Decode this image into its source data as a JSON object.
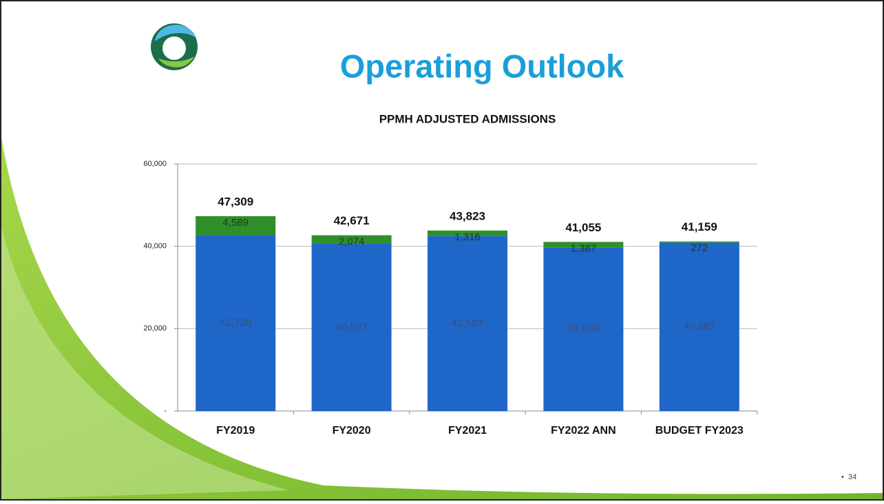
{
  "slide": {
    "title": "Operating Outlook",
    "page": "34"
  },
  "chart_data": {
    "type": "stacked-bar",
    "title": "PPMH ADJUSTED ADMISSIONS",
    "categories": [
      "FY2019",
      "FY2020",
      "FY2021",
      "FY2022 ANN",
      "BUDGET FY2023"
    ],
    "series": [
      {
        "color": "#1f66c9",
        "values": [
          42720,
          40597,
          42507,
          39668,
          40887
        ],
        "value_labels": [
          "42,720",
          "40,597",
          "42,507",
          "39,668",
          "40,887"
        ]
      },
      {
        "color": "#2f8f2a",
        "values": [
          4589,
          2074,
          1316,
          1387,
          272
        ],
        "value_labels": [
          "4,589",
          "2,074",
          "1,316",
          "1,387",
          "272"
        ]
      }
    ],
    "total_labels": [
      "47,309",
      "42,671",
      "43,823",
      "41,055",
      "41,159"
    ],
    "ylim": [
      0,
      60000
    ],
    "yticks": [
      {
        "value": 0,
        "label": "-"
      },
      {
        "value": 20000,
        "label": "20,000"
      },
      {
        "value": 40000,
        "label": "40,000"
      },
      {
        "value": 60000,
        "label": "60,000"
      }
    ],
    "grid": true
  }
}
